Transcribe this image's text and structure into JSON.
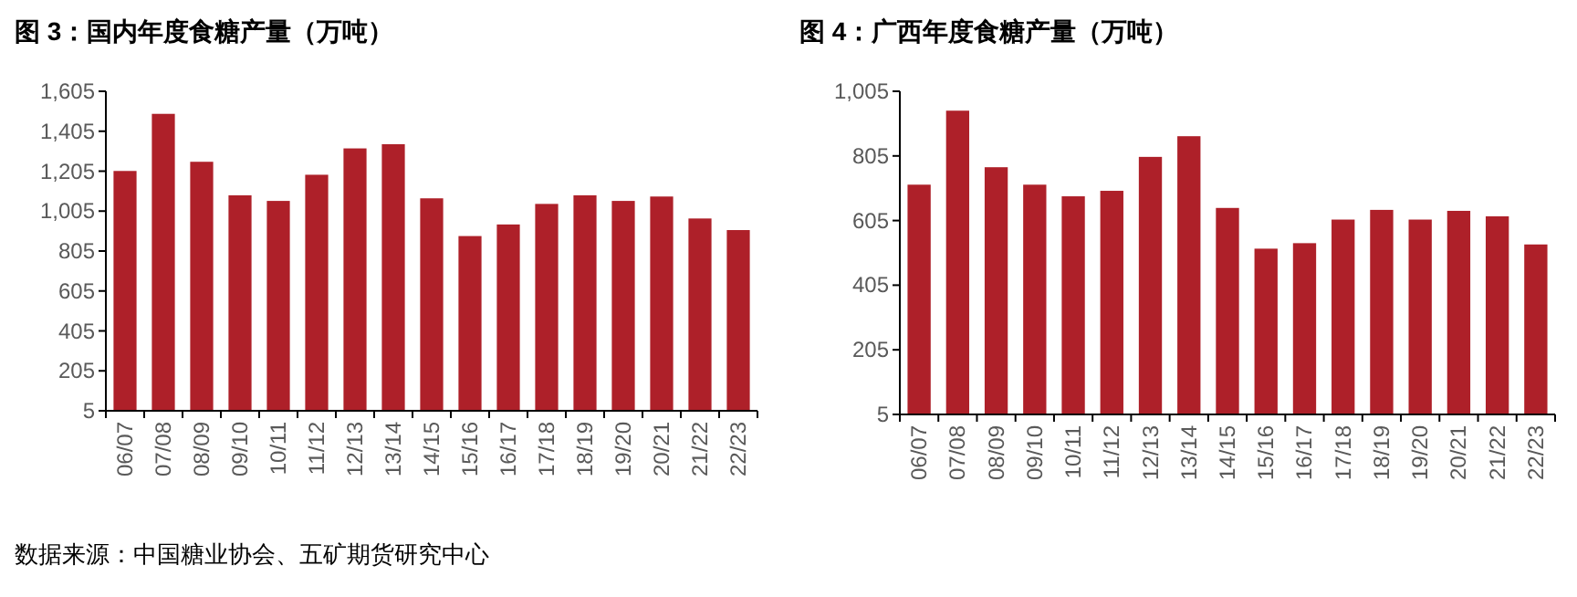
{
  "chart_data": [
    {
      "type": "bar",
      "title": "图 3：国内年度食糖产量（万吨）",
      "categories": [
        "06/07",
        "07/08",
        "08/09",
        "09/10",
        "10/11",
        "11/12",
        "12/13",
        "13/14",
        "14/15",
        "15/16",
        "16/17",
        "17/18",
        "18/19",
        "19/20",
        "20/21",
        "21/22",
        "22/23"
      ],
      "values": [
        1206,
        1492,
        1252,
        1084,
        1056,
        1187,
        1319,
        1340,
        1069,
        880,
        938,
        1041,
        1084,
        1056,
        1078,
        968,
        910
      ],
      "color": "#ae2029",
      "ylim": [
        5,
        1605
      ],
      "yticks": [
        5,
        205,
        405,
        605,
        805,
        {
          "value": 1005,
          "label": "1,005"
        },
        {
          "value": 1205,
          "label": "1,205"
        },
        {
          "value": 1405,
          "label": "1,405"
        },
        {
          "value": 1605,
          "label": "1,605"
        }
      ],
      "annotations": [
        "数据来源：中国糖业协会、五矿期货研究中心"
      ]
    },
    {
      "type": "bar",
      "title": "图 4：广西年度食糖产量（万吨）",
      "categories": [
        "06/07",
        "07/08",
        "08/09",
        "09/10",
        "10/11",
        "11/12",
        "12/13",
        "13/14",
        "14/15",
        "15/16",
        "16/17",
        "17/18",
        "18/19",
        "19/20",
        "20/21",
        "21/22",
        "22/23"
      ],
      "values": [
        716,
        945,
        770,
        716,
        680,
        697,
        802,
        866,
        644,
        518,
        535,
        608,
        638,
        608,
        635,
        618,
        531
      ],
      "color": "#ae2029",
      "ylim": [
        5,
        1005
      ],
      "yticks": [
        5,
        205,
        405,
        605,
        805,
        {
          "value": 1005,
          "label": "1,005"
        }
      ]
    }
  ]
}
